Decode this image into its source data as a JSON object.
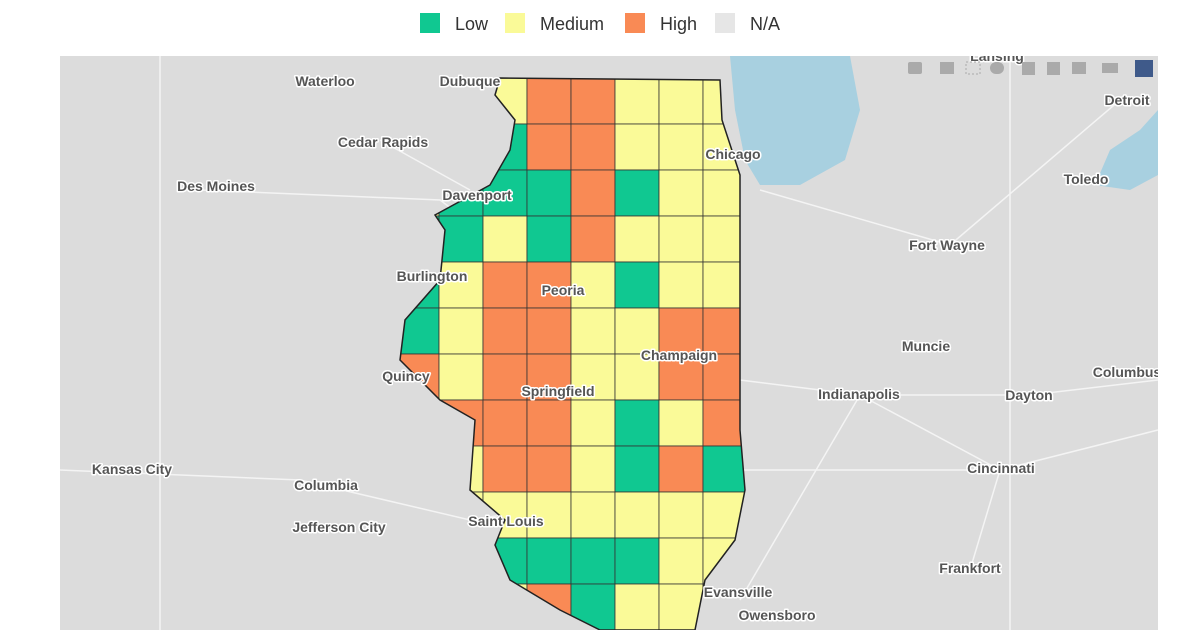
{
  "legend": [
    {
      "label": "Low",
      "color": "#10c891"
    },
    {
      "label": "Medium",
      "color": "#fafa98"
    },
    {
      "label": "High",
      "color": "#f98a55"
    },
    {
      "label": "N/A",
      "color": "#e6e6e6"
    }
  ],
  "cities": [
    "Lansing",
    "Waterloo",
    "Dubuque",
    "Detroit",
    "Cedar Rapids",
    "Chicago",
    "Des Moines",
    "Davenport",
    "Toledo",
    "Fort Wayne",
    "Burlington",
    "Peoria",
    "Muncie",
    "Champaign",
    "Quincy",
    "Columbus",
    "Springfield",
    "Indianapolis",
    "Dayton",
    "Kansas City",
    "Cincinnati",
    "Columbia",
    "Saint Louis",
    "Jefferson City",
    "Frankfort",
    "Evansville",
    "Owensboro"
  ]
}
